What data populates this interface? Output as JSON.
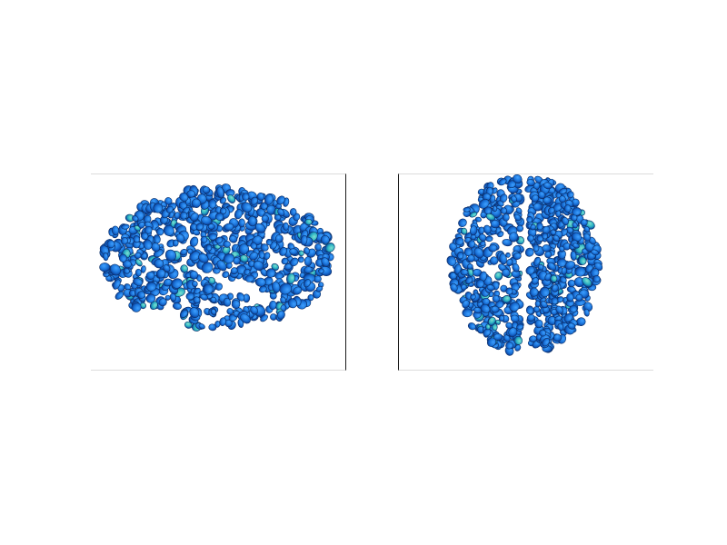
{
  "figure": {
    "background": "#ffffff",
    "panels": [
      {
        "view": "lateral",
        "palette": {
          "base": "#1a73d9",
          "light": "#3fa0ff",
          "dark": "#0b3f99",
          "teal": "#27b0c2",
          "outline": "#0a2d66"
        },
        "icon": "brain-lateral-view"
      },
      {
        "view": "superior",
        "palette": {
          "base": "#1a73d9",
          "light": "#3fa0ff",
          "dark": "#0b3f99",
          "teal": "#27b0c2",
          "outline": "#0a2d66"
        },
        "icon": "brain-superior-view"
      }
    ]
  }
}
